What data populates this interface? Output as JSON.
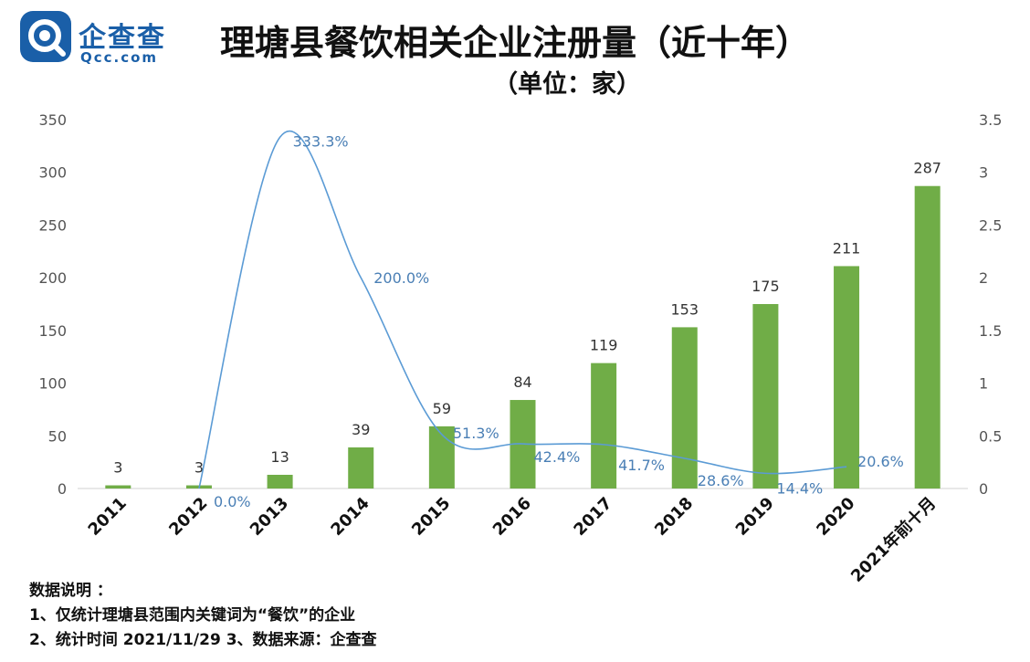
{
  "brand": {
    "name_cn": "企查查",
    "name_en": "Qcc.com",
    "logo_icon": "qcc-logo-icon",
    "color": "#1a5fa8"
  },
  "title": "理塘县餐饮相关企业注册量（近十年）",
  "subtitle": "（单位：家）",
  "chart_data": {
    "type": "bar",
    "categories": [
      "2011",
      "2012",
      "2013",
      "2014",
      "2015",
      "2016",
      "2017",
      "2018",
      "2019",
      "2020",
      "2021年前十月"
    ],
    "series": [
      {
        "type": "bar",
        "axis": "left",
        "color": "#70ad47",
        "values": [
          3,
          3,
          13,
          39,
          59,
          84,
          119,
          153,
          175,
          211,
          287
        ],
        "labels": [
          "3",
          "3",
          "13",
          "39",
          "59",
          "84",
          "119",
          "153",
          "175",
          "211",
          "287"
        ]
      },
      {
        "type": "line",
        "axis": "right",
        "color": "#5b9bd5",
        "values": [
          null,
          0.0,
          3.333,
          2.0,
          0.513,
          0.424,
          0.417,
          0.286,
          0.144,
          0.206,
          null
        ],
        "labels": [
          null,
          "0.0%",
          "333.3%",
          "200.0%",
          "51.3%",
          "42.4%",
          "41.7%",
          "28.6%",
          "14.4%",
          "20.6%",
          null
        ]
      }
    ],
    "ylim_left": [
      0,
      350
    ],
    "yticks_left": [
      "0",
      "50",
      "100",
      "150",
      "200",
      "250",
      "300",
      "350"
    ],
    "ylim_right": [
      0,
      3.5
    ],
    "yticks_right": [
      "0",
      "0.5",
      "1",
      "1.5",
      "2",
      "2.5",
      "3",
      "3.5"
    ],
    "grid": false
  },
  "notes": {
    "heading": "数据说明 ：",
    "line1": "1、仅统计理塘县范围内关键词为“餐饮”的企业",
    "line2": "2、统计时间 2021/11/29   3、数据来源：企查查"
  }
}
